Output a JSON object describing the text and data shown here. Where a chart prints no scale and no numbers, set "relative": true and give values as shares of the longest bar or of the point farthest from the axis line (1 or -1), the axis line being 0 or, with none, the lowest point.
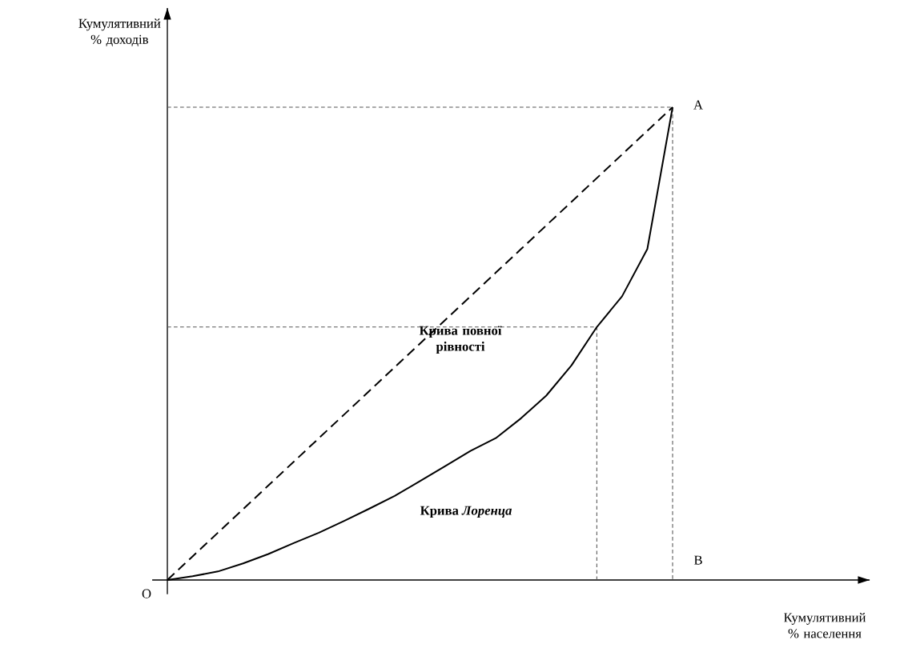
{
  "chart_data": {
    "type": "line",
    "relative": true,
    "marker": "none",
    "ylabel": "Кумулятивний % доходів",
    "categories": [
      null,
      null,
      null,
      null,
      null,
      null,
      null,
      null,
      null,
      null,
      null,
      null,
      null,
      null,
      null,
      null,
      null,
      null,
      null,
      null,
      null
    ],
    "series": [
      {
        "color": "#000000",
        "line_style": "dashed",
        "values": [
          0,
          0.05,
          0.1,
          0.15,
          0.2,
          0.25,
          0.3,
          0.35,
          0.4,
          0.45,
          0.5,
          0.55,
          0.6,
          0.65,
          0.7,
          0.75,
          0.8,
          0.85,
          0.9,
          0.95,
          1
        ]
      },
      {
        "color": "#000000",
        "line_style": "solid",
        "values": [
          0,
          0.008,
          0.018,
          0.035,
          0.055,
          0.078,
          0.1,
          0.125,
          0.151,
          0.178,
          0.209,
          0.241,
          0.273,
          0.3,
          0.342,
          0.39,
          0.454,
          0.535,
          0.6,
          0.7,
          1
        ]
      }
    ],
    "ref_lines": [
      {
        "axis": "y",
        "value": 1,
        "color": "#555555",
        "line_style": "dashed"
      },
      {
        "axis": "y",
        "value": 0.535,
        "color": "#555555",
        "line_style": "dashed"
      }
    ],
    "annotations": [
      "O",
      "A",
      "B",
      "Крива повної рівності",
      "Крива *Лоренца*",
      "Кумулятивний % населення"
    ]
  }
}
